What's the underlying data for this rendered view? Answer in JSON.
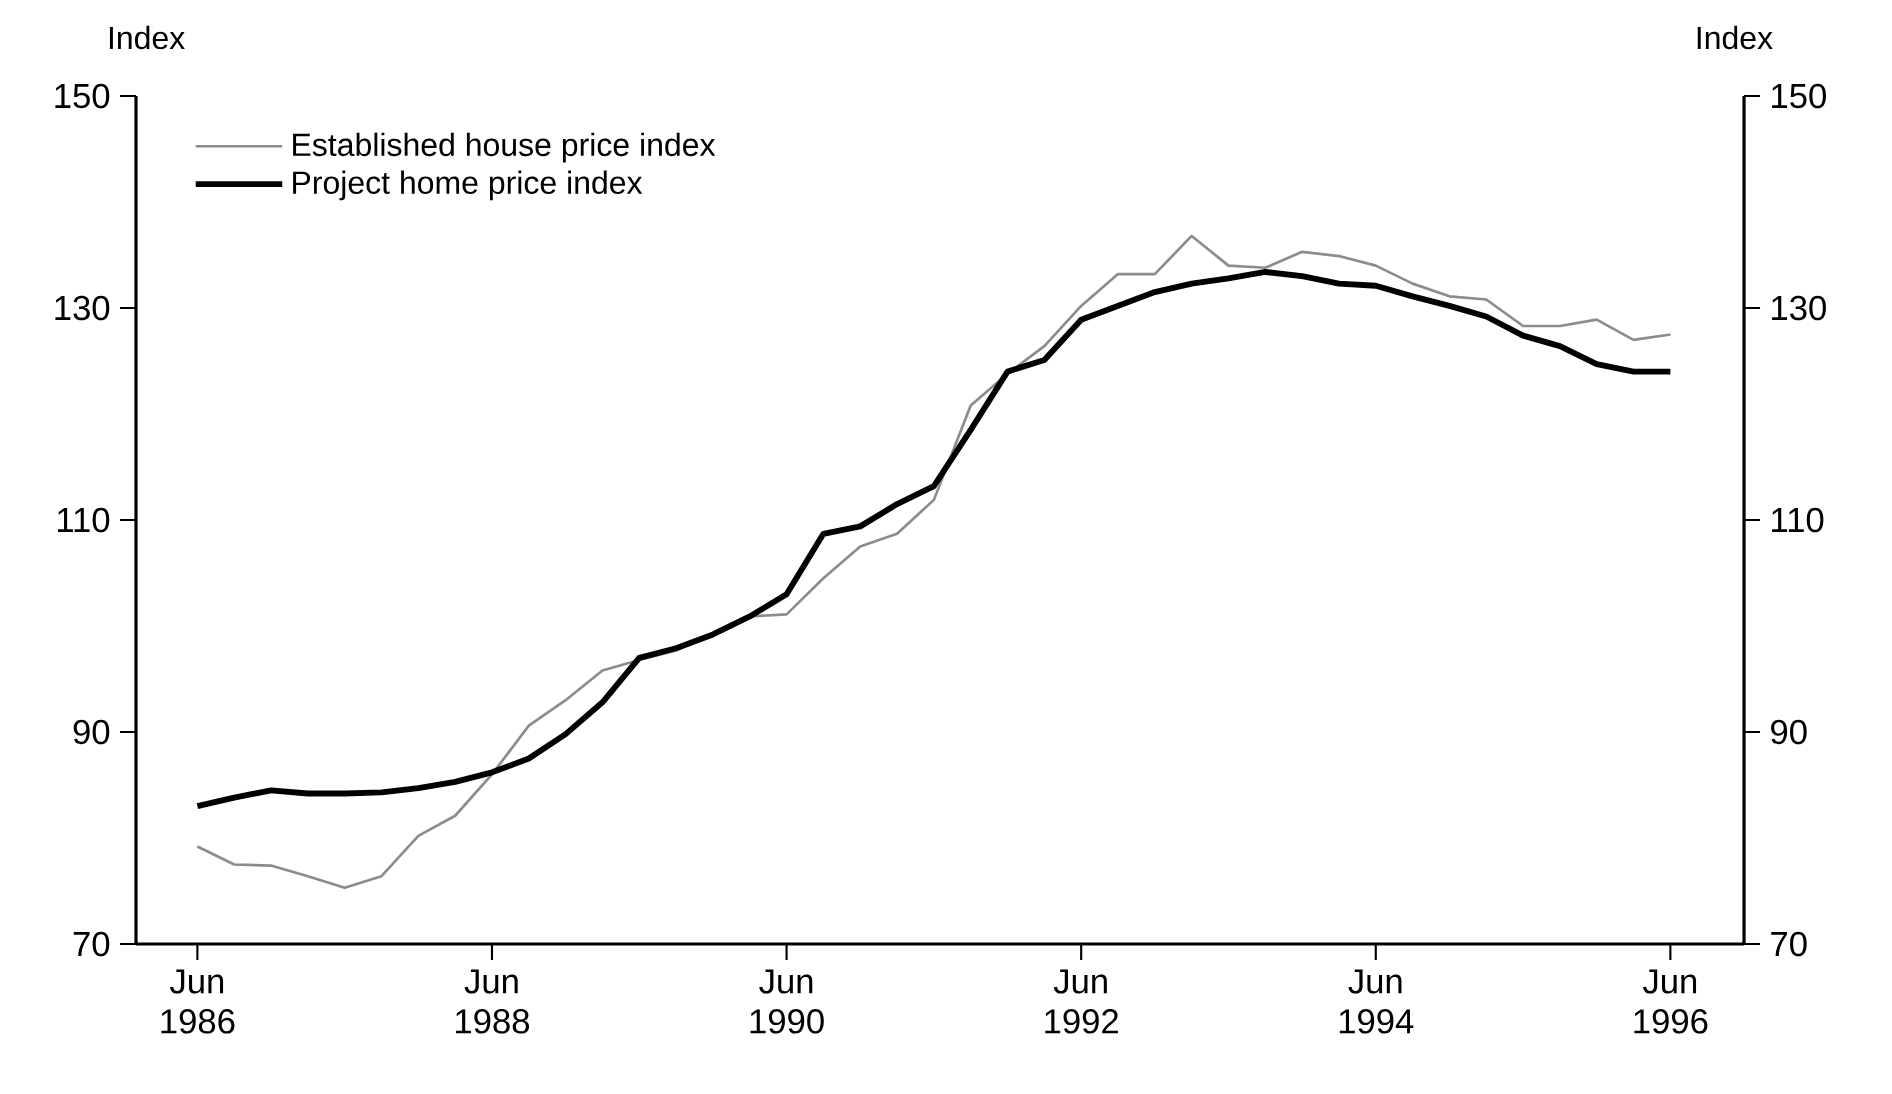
{
  "chart_data": {
    "type": "line",
    "ylabel": "Index",
    "y2label": "Index",
    "x": [
      "1986-06",
      "1986-09",
      "1986-12",
      "1987-03",
      "1987-06",
      "1987-09",
      "1987-12",
      "1988-03",
      "1988-06",
      "1988-09",
      "1988-12",
      "1989-03",
      "1989-06",
      "1989-09",
      "1989-12",
      "1990-03",
      "1990-06",
      "1990-09",
      "1990-12",
      "1991-03",
      "1991-06",
      "1991-09",
      "1991-12",
      "1992-03",
      "1992-06",
      "1992-09",
      "1992-12",
      "1993-03",
      "1993-06",
      "1993-09",
      "1993-12",
      "1994-03",
      "1994-06",
      "1994-09",
      "1994-12",
      "1995-03",
      "1995-06",
      "1995-09",
      "1995-12",
      "1996-03",
      "1996-06"
    ],
    "series": [
      {
        "name": "Established house price index",
        "color": "#8c8c8c",
        "values": [
          79.2,
          77.5,
          77.4,
          76.4,
          75.3,
          76.4,
          80.2,
          82.1,
          86.0,
          90.6,
          93.0,
          95.8,
          96.8,
          97.7,
          99.2,
          100.9,
          101.1,
          104.5,
          107.5,
          108.7,
          111.9,
          120.8,
          123.8,
          126.4,
          130.2,
          133.2,
          133.2,
          136.8,
          134.0,
          133.8,
          135.3,
          134.9,
          134.0,
          132.3,
          131.1,
          130.8,
          128.3,
          128.3,
          128.9,
          127.0,
          127.5
        ]
      },
      {
        "name": "Project home price index",
        "color": "#000000",
        "values": [
          83.0,
          83.8,
          84.5,
          84.2,
          84.2,
          84.3,
          84.7,
          85.3,
          86.2,
          87.5,
          89.8,
          92.8,
          97.0,
          97.9,
          99.2,
          100.9,
          103.0,
          108.7,
          109.4,
          111.5,
          113.2,
          118.5,
          124.0,
          125.1,
          128.9,
          130.2,
          131.5,
          132.3,
          132.8,
          133.4,
          133.0,
          132.3,
          132.1,
          131.1,
          130.2,
          129.2,
          127.4,
          126.4,
          124.7,
          124.0,
          124.0
        ]
      }
    ],
    "xlim": [
      "1986-01",
      "1996-12"
    ],
    "xticks": [
      {
        "value": "1986-06",
        "label": "Jun 1986"
      },
      {
        "value": "1988-06",
        "label": "Jun 1988"
      },
      {
        "value": "1990-06",
        "label": "Jun 1990"
      },
      {
        "value": "1992-06",
        "label": "Jun 1992"
      },
      {
        "value": "1994-06",
        "label": "Jun 1994"
      },
      {
        "value": "1996-06",
        "label": "Jun 1996"
      }
    ],
    "ylim": [
      70,
      150
    ],
    "yticks": [
      70,
      90,
      110,
      130,
      150
    ],
    "y2lim": [
      70,
      150
    ],
    "y2ticks": [
      70,
      90,
      110,
      130,
      150
    ],
    "legend": "top left"
  }
}
